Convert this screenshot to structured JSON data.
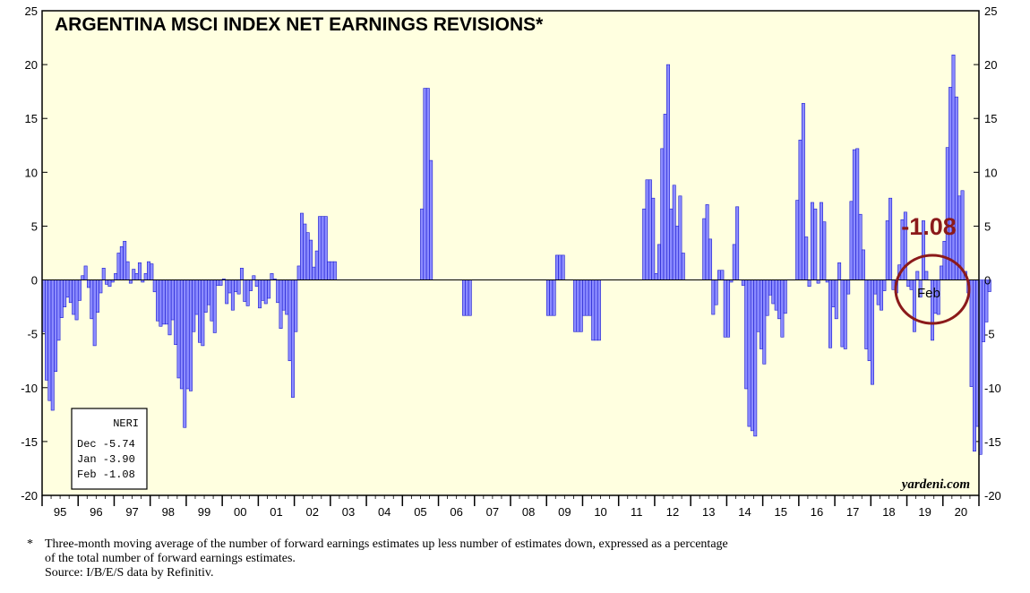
{
  "chart_data": {
    "type": "bar",
    "title": "ARGENTINA MSCI INDEX NET EARNINGS REVISIONS*",
    "ylim": [
      -20,
      25
    ],
    "yticks": [
      -20,
      -15,
      -10,
      -5,
      0,
      5,
      10,
      15,
      20,
      25
    ],
    "x_start_year": 1995,
    "x_end_year": 2020,
    "x_tick_labels": [
      "95",
      "96",
      "97",
      "98",
      "99",
      "00",
      "01",
      "02",
      "03",
      "04",
      "05",
      "06",
      "07",
      "08",
      "09",
      "10",
      "11",
      "12",
      "13",
      "14",
      "15",
      "16",
      "17",
      "18",
      "19",
      "20"
    ],
    "series": [
      {
        "values": [
          -4.8,
          -9.3,
          -11.2,
          -12.1,
          -8.5,
          -5.6,
          -3.5,
          -2.5,
          -1.6,
          -2.1,
          -3.2,
          -3.7,
          -1.9,
          0.4,
          1.3,
          -0.7,
          -3.6,
          -6.1,
          -3.0,
          -1.2,
          1.1,
          -0.4,
          -0.6,
          -0.2,
          0.6,
          2.5,
          3.1,
          3.6,
          1.7,
          -0.3,
          1.0,
          0.6,
          1.6,
          -0.2,
          0.6,
          1.7,
          1.5,
          -1.1,
          -3.8,
          -4.3,
          -4.1,
          -4.1,
          -5.1,
          -3.7,
          -6.0,
          -9.1,
          -10.1,
          -13.7,
          -10.1,
          -10.3,
          -4.8,
          -3.2,
          -5.8,
          -6.1,
          -3.0,
          -2.3,
          -3.8,
          -4.9,
          -0.5,
          -0.5,
          0.1,
          -2.2,
          -1.2,
          -2.8,
          -1.1,
          -1.3,
          1.1,
          -2.0,
          -2.4,
          -1.0,
          0.4,
          -0.6,
          -2.6,
          -1.9,
          -2.2,
          -1.7,
          0.6,
          0.1,
          -2.1,
          -4.5,
          -2.8,
          -3.2,
          -7.5,
          -10.9,
          -4.8,
          1.3,
          6.2,
          5.2,
          4.4,
          3.7,
          1.2,
          2.7,
          5.9,
          5.9,
          5.9,
          1.7,
          1.7,
          1.7,
          0,
          0,
          0,
          0,
          0,
          0,
          0,
          0,
          0,
          0,
          0,
          0,
          0,
          0,
          0,
          0,
          0,
          0,
          0,
          0,
          0,
          0,
          0,
          0,
          0,
          0,
          0,
          0,
          6.6,
          17.8,
          17.8,
          11.1,
          0,
          0,
          0,
          0,
          0,
          0,
          0,
          0,
          0,
          0,
          -3.3,
          -3.3,
          -3.3,
          0,
          0,
          0,
          0,
          0,
          0,
          0,
          0,
          0,
          0,
          0,
          0,
          0,
          0,
          0,
          0,
          0,
          0,
          0,
          0,
          0,
          0,
          0,
          0,
          0,
          -3.3,
          -3.3,
          -3.3,
          2.3,
          2.3,
          2.3,
          0,
          0,
          0,
          -4.8,
          -4.8,
          -4.8,
          -3.3,
          -3.3,
          -3.3,
          -5.6,
          -5.6,
          -5.6,
          0,
          0,
          0,
          0,
          0,
          0,
          0,
          0,
          0,
          0,
          0,
          0,
          0,
          0,
          6.6,
          9.3,
          9.3,
          7.6,
          0.6,
          3.3,
          12.2,
          15.4,
          20.0,
          6.6,
          8.8,
          5.0,
          7.8,
          2.5,
          0,
          0,
          0,
          0,
          0,
          0,
          5.7,
          7.0,
          3.8,
          -3.2,
          -2.3,
          0.9,
          0.9,
          -5.3,
          -5.3,
          -0.2,
          3.3,
          6.8,
          0,
          -0.5,
          -10.1,
          -13.6,
          -14.0,
          -14.5,
          -4.8,
          -6.4,
          -7.8,
          -3.3,
          -1.4,
          -2.2,
          -2.8,
          -3.6,
          -5.3,
          -3.1,
          0,
          0,
          0,
          7.4,
          13.0,
          16.4,
          4.0,
          -0.6,
          7.2,
          6.6,
          -0.3,
          7.2,
          5.4,
          -0.2,
          -6.3,
          -2.5,
          -3.6,
          1.6,
          -6.2,
          -6.4,
          -1.3,
          7.3,
          12.1,
          12.2,
          6.1,
          2.8,
          -6.4,
          -7.5,
          -9.7,
          -1.3,
          -2.3,
          -2.8,
          -1.0,
          5.5,
          7.6,
          -0.9,
          -1.2,
          1.4,
          5.6,
          6.3,
          -0.6,
          -0.9,
          -4.8,
          0.8,
          -1.6,
          5.5,
          0.8,
          0,
          -5.6,
          -3.1,
          -3.2,
          1.3,
          3.6,
          12.3,
          17.9,
          20.9,
          17.0,
          7.8,
          8.3,
          0.8,
          -1.2,
          -9.9,
          -15.9,
          -13.6,
          -16.2,
          -5.74,
          -3.9,
          -1.08
        ]
      }
    ],
    "annotation_value": "-1.08",
    "annotation_month": "Feb",
    "legend_box": {
      "title": "NERI",
      "rows": [
        "Dec -5.74",
        "Jan -3.90",
        "Feb -1.08"
      ]
    },
    "watermark": "yardeni.com",
    "colors": {
      "plot_background": "#ffffe0",
      "bar_fill": "#8c8cff",
      "bar_stroke": "#1a1ad0",
      "annotation": "#8b1a1a"
    }
  },
  "footnote": {
    "marker": "*",
    "line1": "Three-month moving average of the number of forward earnings estimates up less number of estimates down, expressed as a percentage",
    "line2": "of the total number of forward earnings estimates.",
    "source": "Source: I/B/E/S data by Refinitiv."
  }
}
